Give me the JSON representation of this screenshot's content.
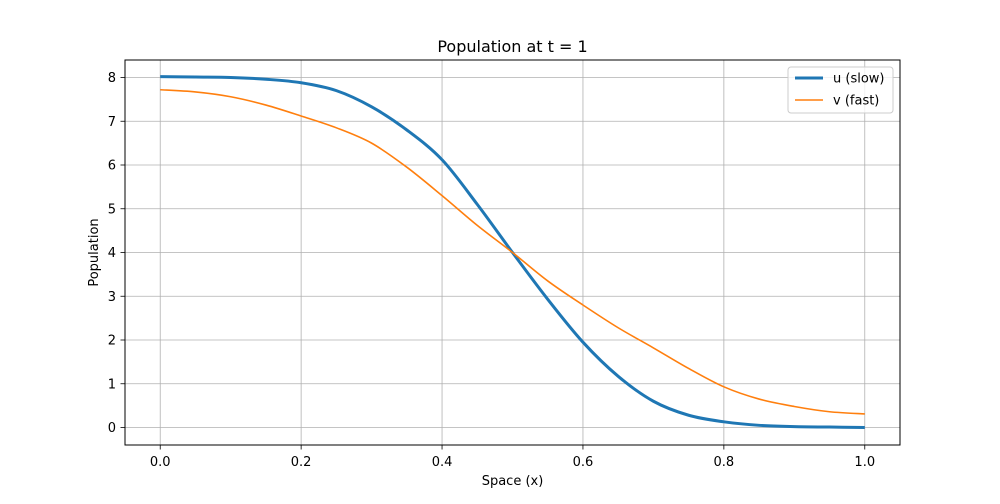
{
  "chart_data": {
    "type": "line",
    "title": "Population at t = 1",
    "xlabel": "Space (x)",
    "ylabel": "Population",
    "xlim": [
      -0.05,
      1.05
    ],
    "ylim": [
      -0.4,
      8.4
    ],
    "xticks": [
      0.0,
      0.2,
      0.4,
      0.6,
      0.8,
      1.0
    ],
    "xtick_labels": [
      "0.0",
      "0.2",
      "0.4",
      "0.6",
      "0.8",
      "1.0"
    ],
    "yticks": [
      0,
      1,
      2,
      3,
      4,
      5,
      6,
      7,
      8
    ],
    "ytick_labels": [
      "0",
      "1",
      "2",
      "3",
      "4",
      "5",
      "6",
      "7",
      "8"
    ],
    "grid": true,
    "legend": "top-right",
    "series": [
      {
        "name": "u (slow)",
        "color": "#1f77b4",
        "x": [
          0.0,
          0.05,
          0.1,
          0.15,
          0.2,
          0.25,
          0.3,
          0.35,
          0.4,
          0.45,
          0.5,
          0.55,
          0.6,
          0.65,
          0.7,
          0.75,
          0.8,
          0.85,
          0.9,
          0.95,
          1.0
        ],
        "y": [
          8.02,
          8.01,
          8.0,
          7.96,
          7.88,
          7.7,
          7.33,
          6.8,
          6.12,
          5.1,
          4.0,
          2.93,
          1.95,
          1.17,
          0.6,
          0.28,
          0.13,
          0.05,
          0.02,
          0.01,
          0.0
        ]
      },
      {
        "name": "v (fast)",
        "color": "#ff7f0e",
        "x": [
          0.0,
          0.05,
          0.1,
          0.15,
          0.2,
          0.25,
          0.3,
          0.35,
          0.4,
          0.45,
          0.5,
          0.55,
          0.6,
          0.65,
          0.7,
          0.75,
          0.8,
          0.85,
          0.9,
          0.95,
          1.0
        ],
        "y": [
          7.72,
          7.67,
          7.56,
          7.37,
          7.12,
          6.85,
          6.5,
          5.95,
          5.3,
          4.62,
          4.0,
          3.35,
          2.8,
          2.28,
          1.82,
          1.35,
          0.93,
          0.65,
          0.48,
          0.36,
          0.31
        ]
      }
    ]
  }
}
